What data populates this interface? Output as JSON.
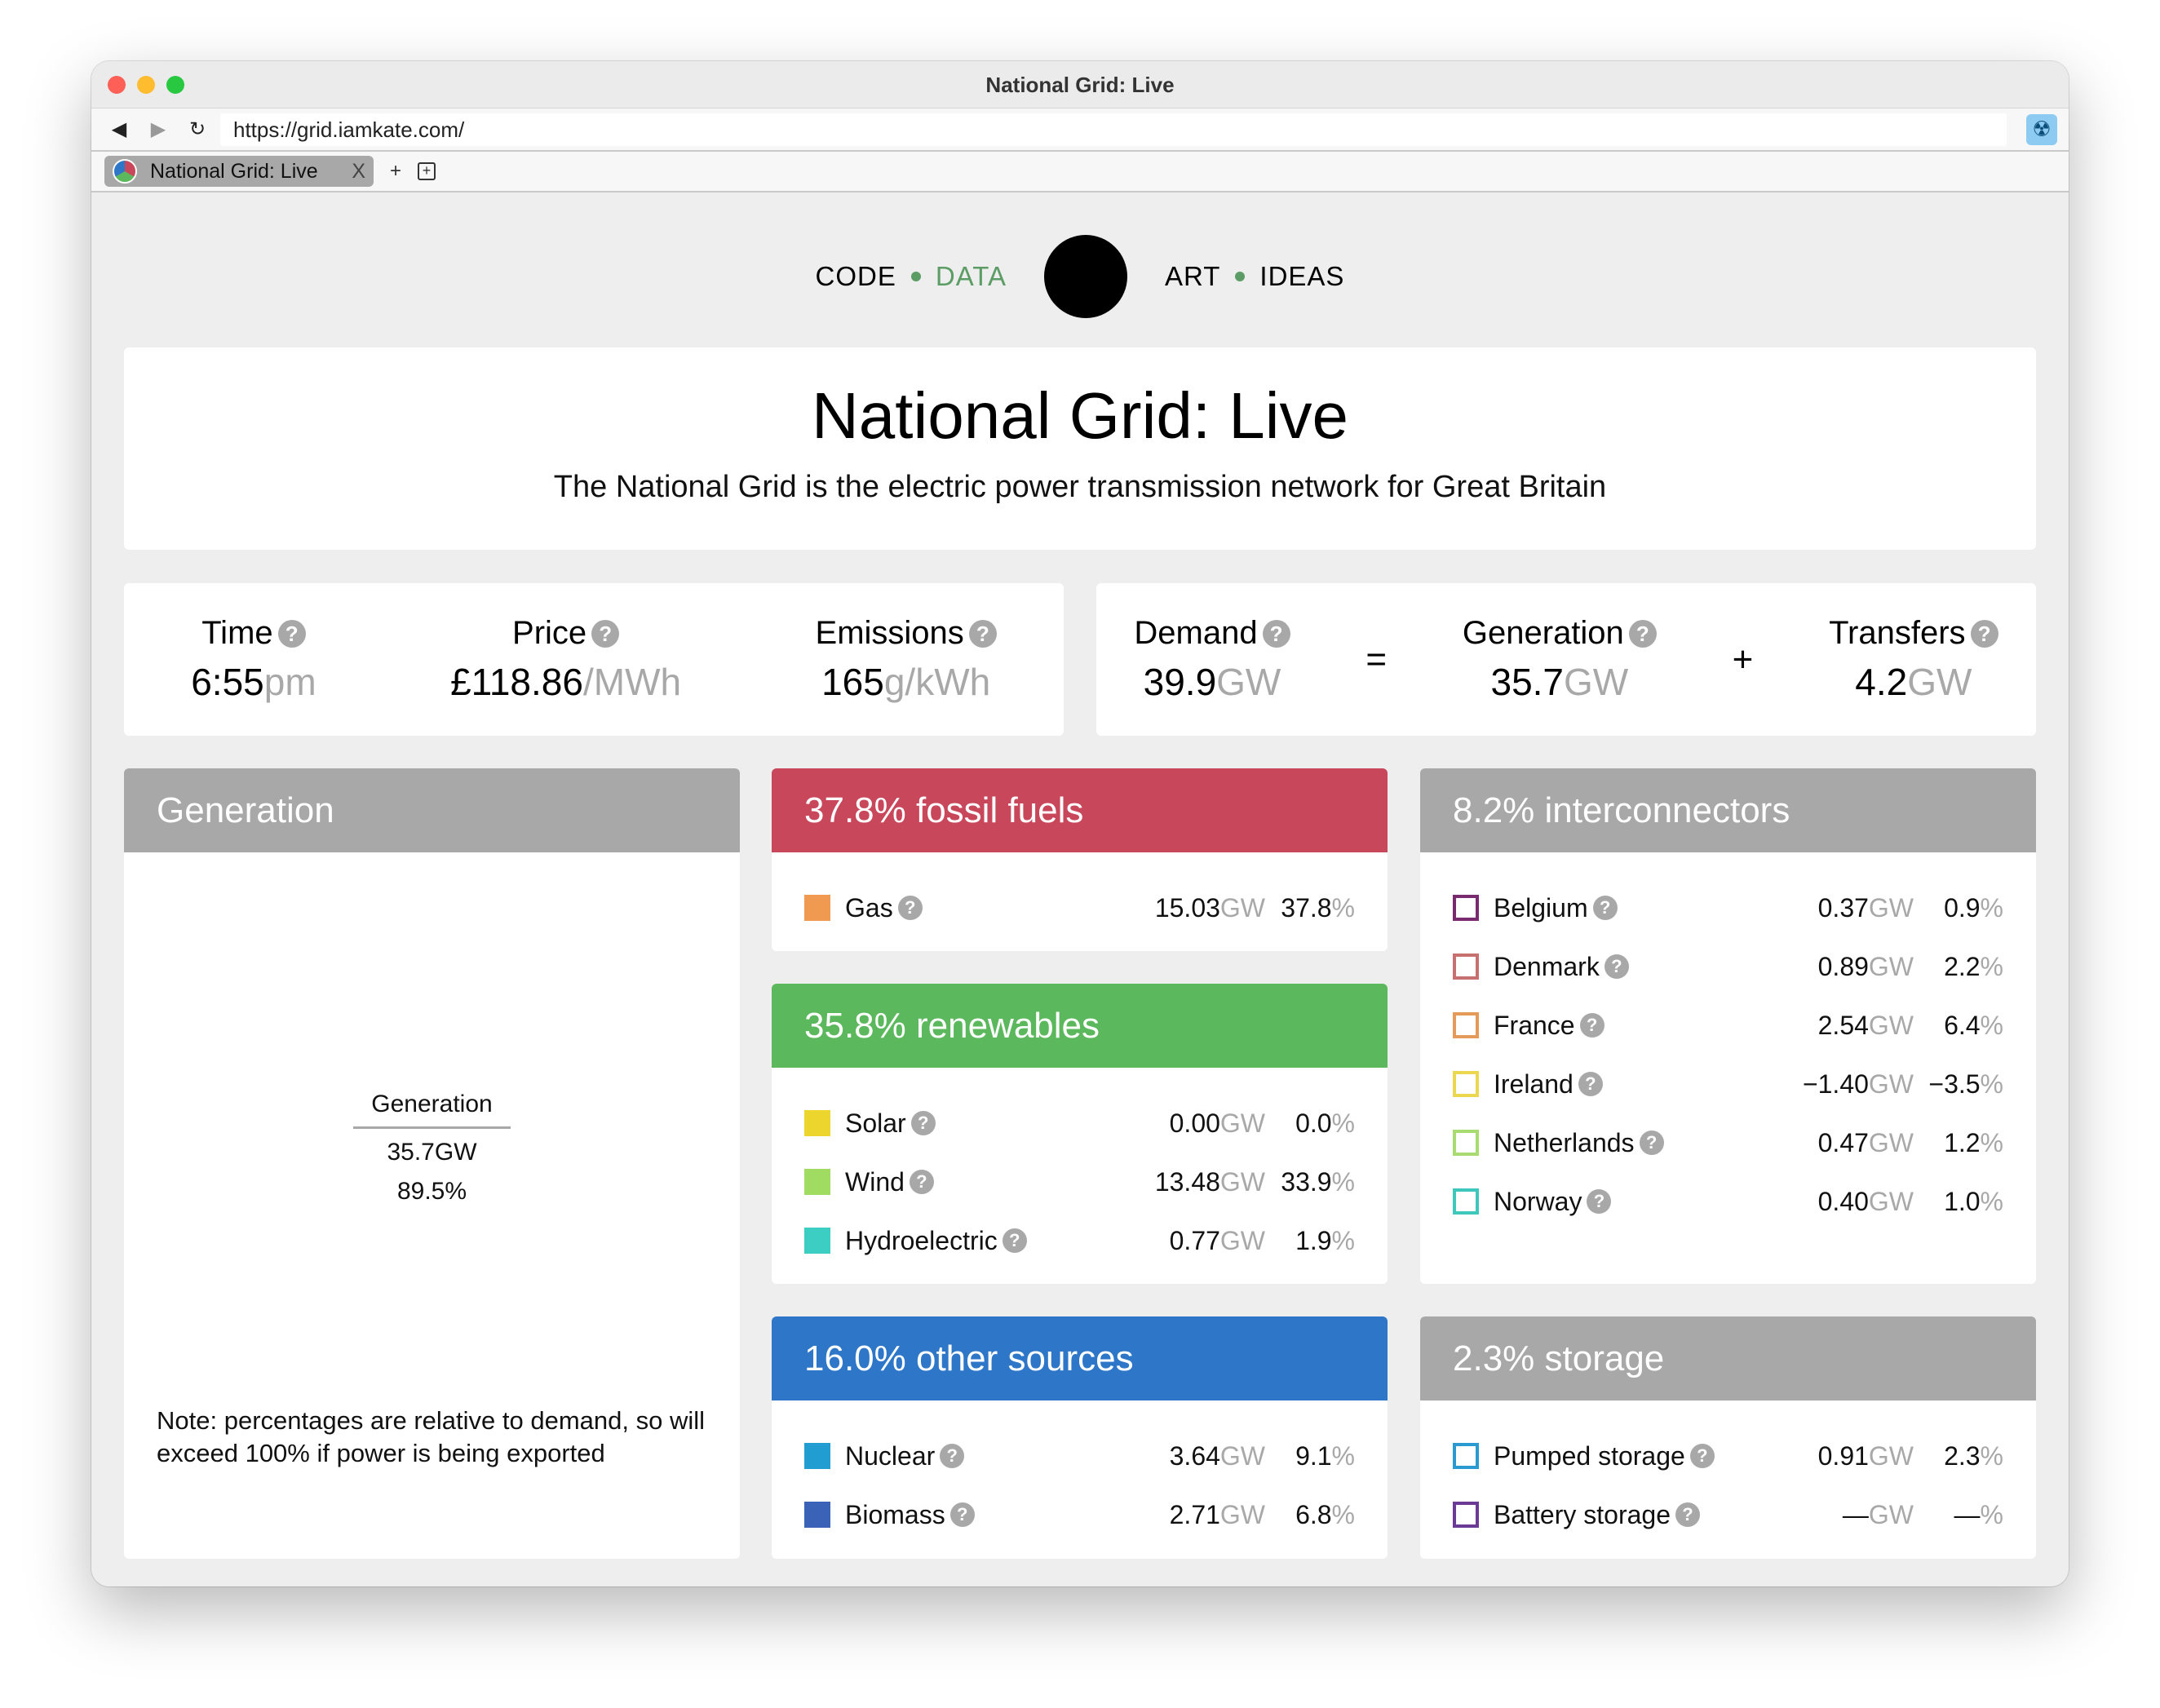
{
  "window": {
    "title": "National Grid: Live",
    "traffic_lights": [
      "#fe5f57",
      "#febc2e",
      "#28c840"
    ]
  },
  "browser": {
    "url": "https://grid.iamkate.com/",
    "back_icon": "◀",
    "forward_icon": "▶",
    "reload_icon": "↻",
    "extension_icon": "☢",
    "tab": {
      "label": "National Grid: Live",
      "close": "X"
    },
    "new_tab": "+",
    "new_tab_group": "+"
  },
  "site_nav": {
    "items": [
      "CODE",
      "DATA",
      "ART",
      "IDEAS"
    ],
    "active": "DATA"
  },
  "header": {
    "title": "National Grid: Live",
    "subtitle": "The National Grid is the electric power transmission network for Great Britain"
  },
  "stats": {
    "time": {
      "label": "Time",
      "value": "6:55",
      "unit": "pm"
    },
    "price": {
      "label": "Price",
      "value": "£118.86",
      "unit": "/MWh"
    },
    "emissions": {
      "label": "Emissions",
      "value": "165",
      "unit": "g/kWh"
    },
    "demand": {
      "label": "Demand",
      "value": "39.9",
      "unit": "GW"
    },
    "equals": "=",
    "generation": {
      "label": "Generation",
      "value": "35.7",
      "unit": "GW"
    },
    "plus": "+",
    "transfers": {
      "label": "Transfers",
      "value": "4.2",
      "unit": "GW"
    }
  },
  "help_glyph": "?",
  "generation_panel": {
    "title": "Generation",
    "center_label": "Generation",
    "center_value": "35.7GW",
    "center_percent": "89.5%",
    "note": "Note: percentages are relative to demand, so will exceed 100% if power is being exported"
  },
  "groups": {
    "fossil": {
      "title": "37.8% fossil fuels",
      "color": "#c8475a",
      "rows": [
        {
          "name": "Gas",
          "gw": "15.03",
          "pct": "37.8",
          "color": "#ef9a50"
        }
      ]
    },
    "renewables": {
      "title": "35.8% renewables",
      "color": "#5cb85c",
      "rows": [
        {
          "name": "Solar",
          "gw": "0.00",
          "pct": "0.0",
          "color": "#ecd62e"
        },
        {
          "name": "Wind",
          "gw": "13.48",
          "pct": "33.9",
          "color": "#a0dc62"
        },
        {
          "name": "Hydroelectric",
          "gw": "0.77",
          "pct": "1.9",
          "color": "#3ccdc3"
        }
      ]
    },
    "other": {
      "title": "16.0% other sources",
      "color": "#2e77c8",
      "rows": [
        {
          "name": "Nuclear",
          "gw": "3.64",
          "pct": "9.1",
          "color": "#229dd2"
        },
        {
          "name": "Biomass",
          "gw": "2.71",
          "pct": "6.8",
          "color": "#3a63b8"
        }
      ]
    },
    "interconnectors": {
      "title": "8.2% interconnectors",
      "color": "#a8a8a8",
      "rows": [
        {
          "name": "Belgium",
          "gw": "0.37",
          "pct": "0.9",
          "color": "#7a2a6e"
        },
        {
          "name": "Denmark",
          "gw": "0.89",
          "pct": "2.2",
          "color": "#c87070"
        },
        {
          "name": "France",
          "gw": "2.54",
          "pct": "6.4",
          "color": "#e69a5a"
        },
        {
          "name": "Ireland",
          "gw": "−1.40",
          "pct": "−3.5",
          "color": "#ecd850"
        },
        {
          "name": "Netherlands",
          "gw": "0.47",
          "pct": "1.2",
          "color": "#a8dc70"
        },
        {
          "name": "Norway",
          "gw": "0.40",
          "pct": "1.0",
          "color": "#3ec8bc"
        }
      ]
    },
    "storage": {
      "title": "2.3% storage",
      "color": "#a8a8a8",
      "rows": [
        {
          "name": "Pumped storage",
          "gw": "0.91",
          "pct": "2.3",
          "color": "#2b9ad0"
        },
        {
          "name": "Battery storage",
          "gw": "—",
          "pct": "—",
          "color": "#6a3a96"
        }
      ]
    }
  },
  "units": {
    "gw": "GW",
    "pct": "%"
  }
}
